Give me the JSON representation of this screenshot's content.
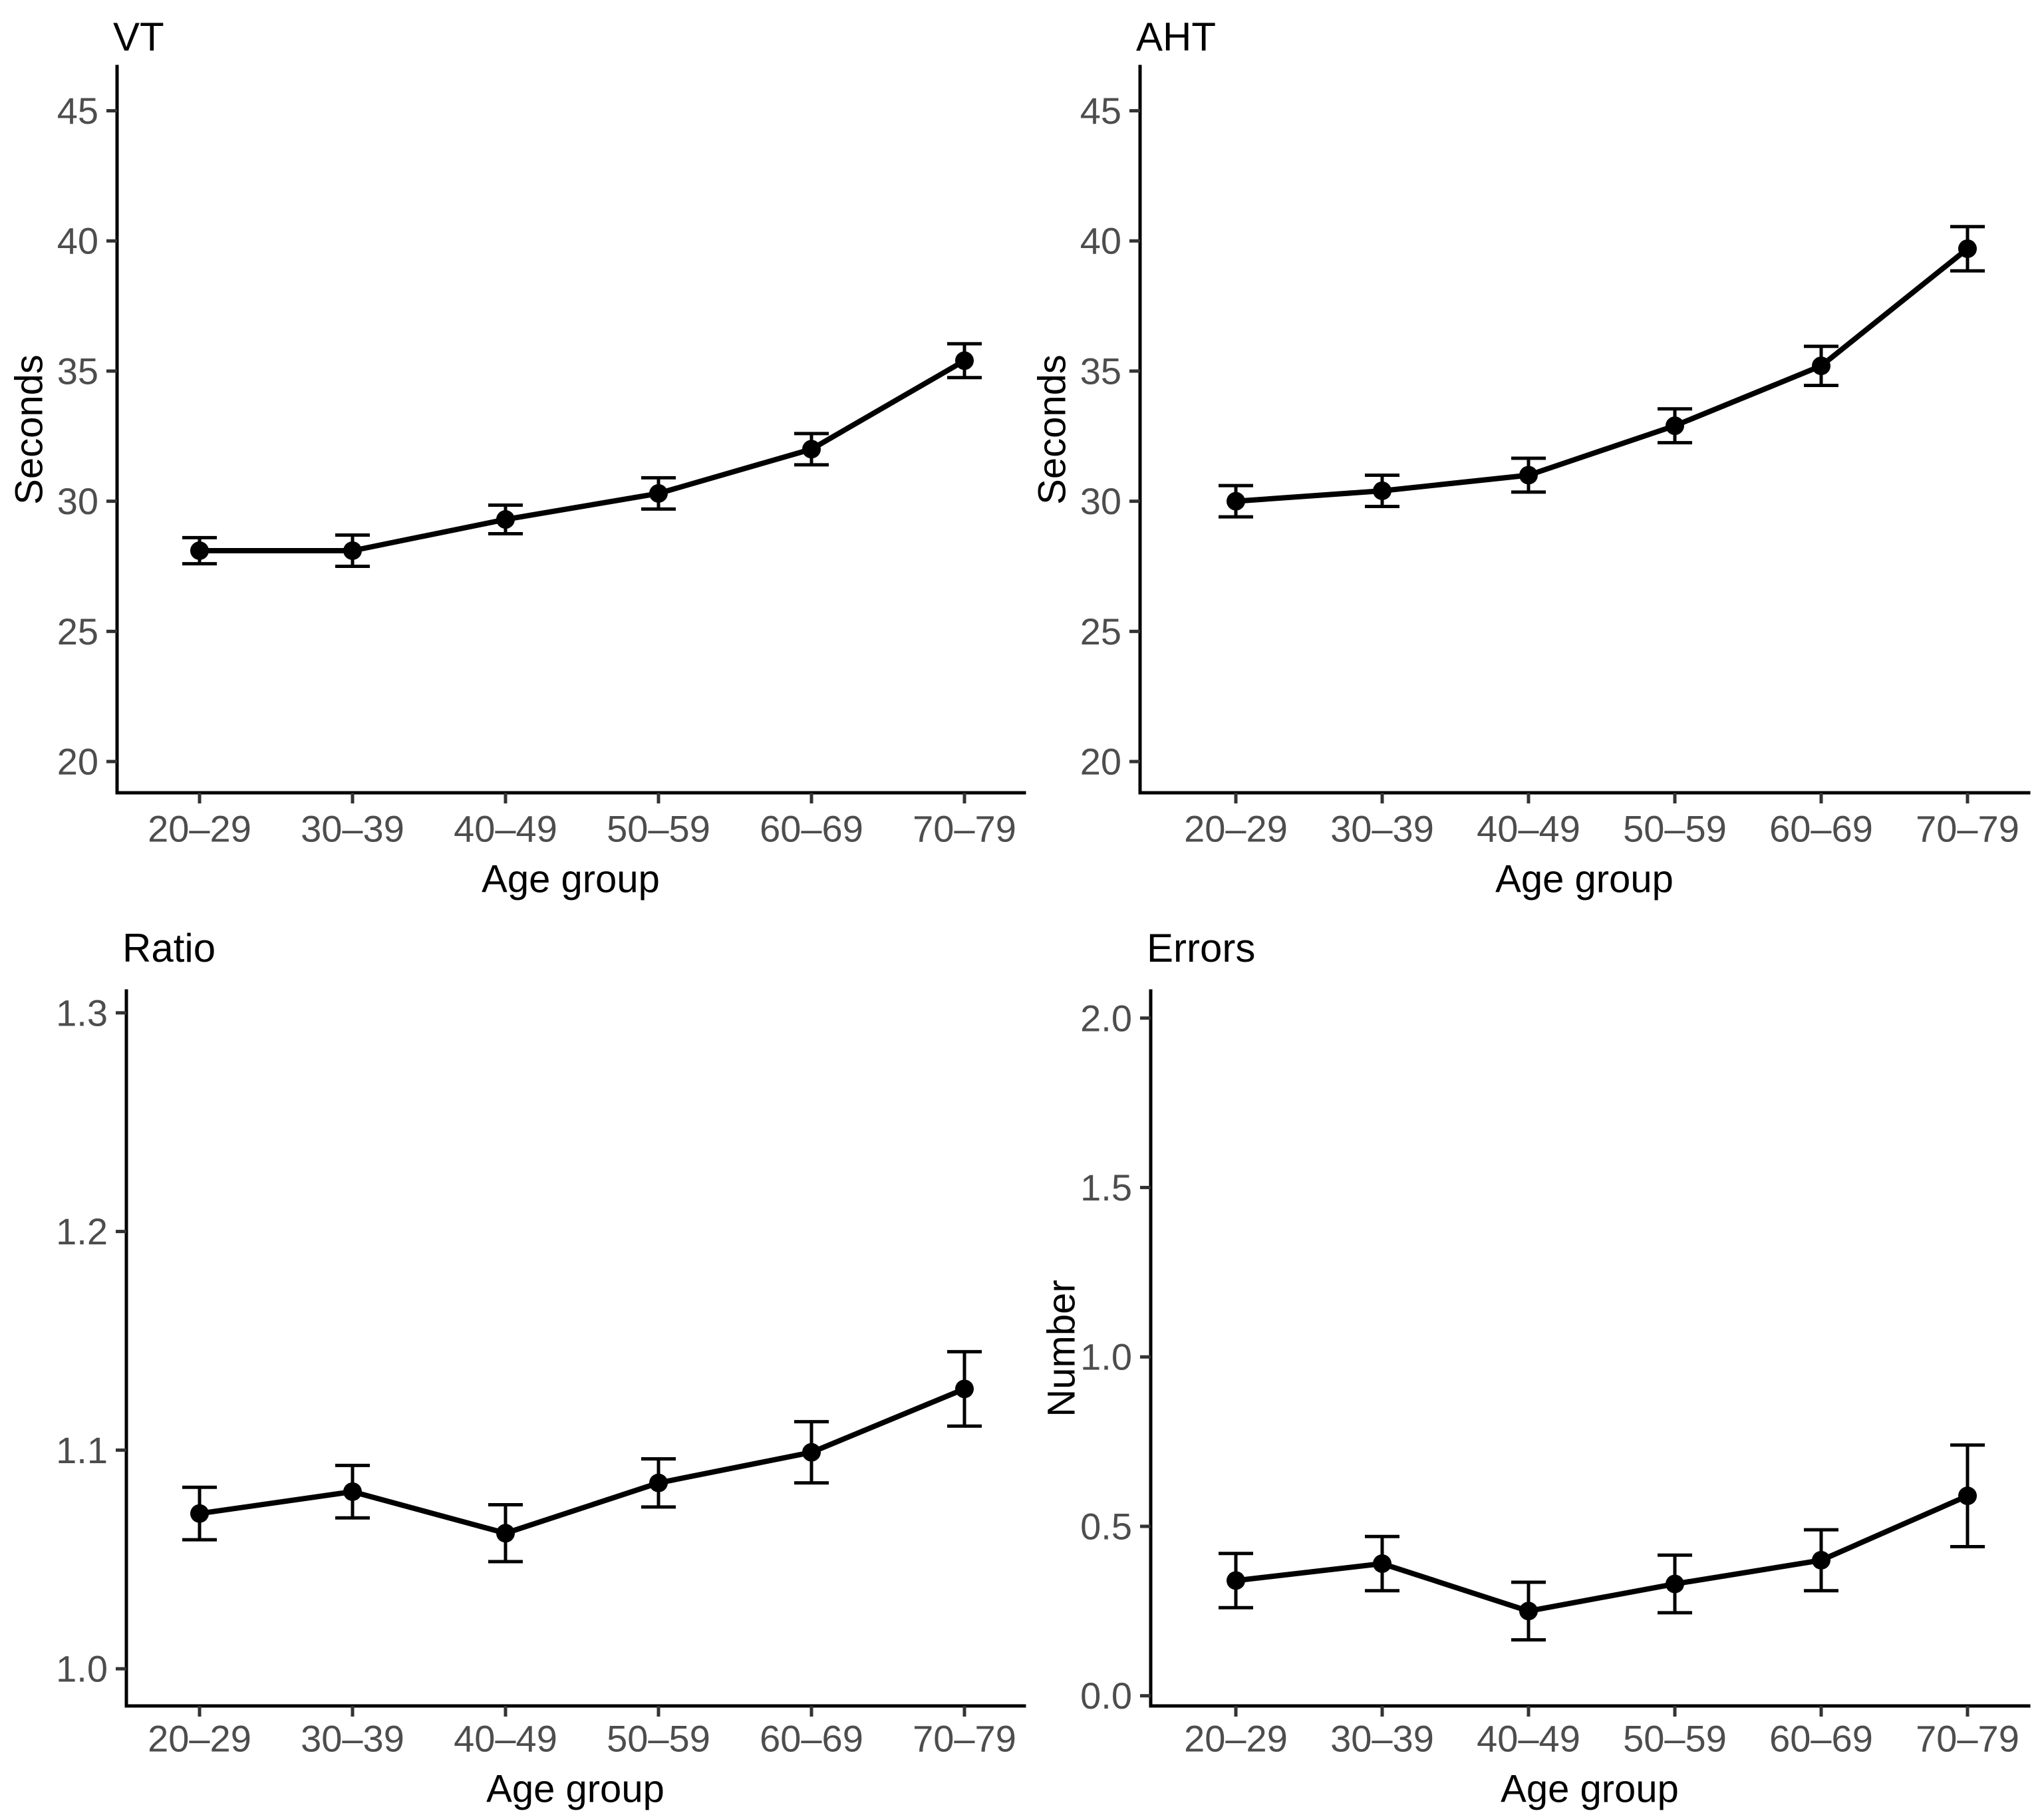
{
  "figure": {
    "background": "#ffffff",
    "axis_color": "#000000",
    "tick_label_color": "#4d4d4d",
    "series_color": "#000000",
    "layout": "2x2 grid of point-and-line charts with error bars, no gridlines, no legend"
  },
  "chart_data": [
    {
      "type": "line",
      "title": "VT",
      "xlabel": "Age group",
      "ylabel": "Seconds",
      "categories": [
        "20–29",
        "30–39",
        "40–49",
        "50–59",
        "60–69",
        "70–79"
      ],
      "values": [
        28.1,
        28.1,
        29.3,
        30.3,
        32.0,
        35.4
      ],
      "error_bars": [
        0.5,
        0.6,
        0.55,
        0.6,
        0.6,
        0.65
      ],
      "yticks": [
        20,
        25,
        30,
        35,
        40,
        45
      ],
      "ytick_labels": [
        "20",
        "25",
        "30",
        "35",
        "40",
        "45"
      ],
      "ylim": [
        18.8,
        46.7
      ],
      "grid": false,
      "legend_position": "none"
    },
    {
      "type": "line",
      "title": "AHT",
      "xlabel": "Age group",
      "ylabel": "Seconds",
      "categories": [
        "20–29",
        "30–39",
        "40–49",
        "50–59",
        "60–69",
        "70–79"
      ],
      "values": [
        30.0,
        30.4,
        31.0,
        32.9,
        35.2,
        39.7
      ],
      "error_bars": [
        0.6,
        0.6,
        0.65,
        0.65,
        0.75,
        0.85
      ],
      "yticks": [
        20,
        25,
        30,
        35,
        40,
        45
      ],
      "ytick_labels": [
        "20",
        "25",
        "30",
        "35",
        "40",
        "45"
      ],
      "ylim": [
        18.8,
        46.7
      ],
      "grid": false,
      "legend_position": "none"
    },
    {
      "type": "line",
      "title": "Ratio",
      "xlabel": "Age group",
      "ylabel": "",
      "categories": [
        "20–29",
        "30–39",
        "40–49",
        "50–59",
        "60–69",
        "70–79"
      ],
      "values": [
        1.071,
        1.081,
        1.062,
        1.085,
        1.099,
        1.128
      ],
      "error_bars": [
        0.012,
        0.012,
        0.013,
        0.011,
        0.014,
        0.017
      ],
      "yticks": [
        1.0,
        1.1,
        1.2,
        1.3
      ],
      "ytick_labels": [
        "1.0",
        "1.1",
        "1.2",
        "1.3"
      ],
      "ylim": [
        0.983,
        1.31
      ],
      "grid": false,
      "legend_position": "none"
    },
    {
      "type": "line",
      "title": "Errors",
      "xlabel": "Age group",
      "ylabel": "Number",
      "categories": [
        "20–29",
        "30–39",
        "40–49",
        "50–59",
        "60–69",
        "70–79"
      ],
      "values": [
        0.34,
        0.39,
        0.25,
        0.33,
        0.4,
        0.59
      ],
      "error_bars": [
        0.08,
        0.08,
        0.085,
        0.085,
        0.09,
        0.15
      ],
      "yticks": [
        0.0,
        0.5,
        1.0,
        1.5,
        2.0
      ],
      "ytick_labels": [
        "0.0",
        "0.5",
        "1.0",
        "1.5",
        "2.0"
      ],
      "ylim": [
        -0.03,
        2.08
      ],
      "grid": false,
      "legend_position": "none"
    }
  ]
}
